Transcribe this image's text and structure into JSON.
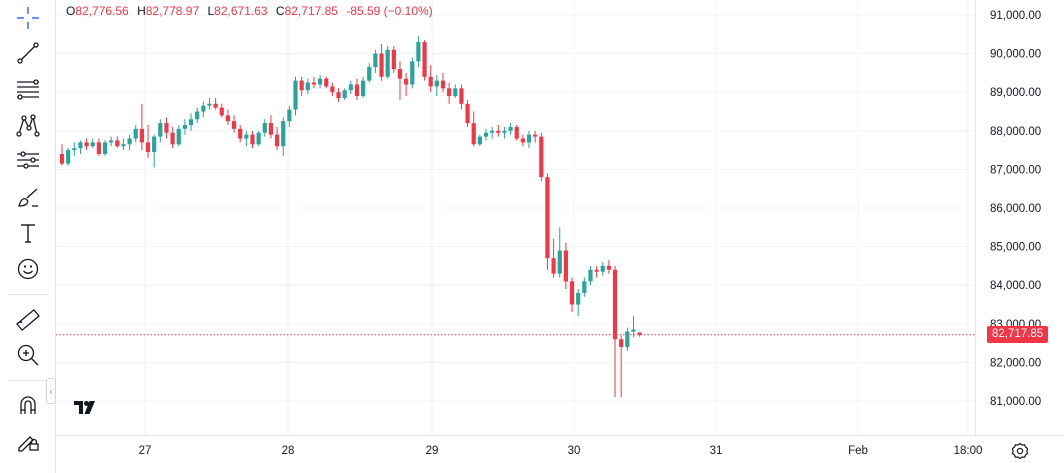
{
  "ohlc": {
    "open_key": "O",
    "open": "82,776.56",
    "high_key": "H",
    "high": "82,778.97",
    "low_key": "L",
    "low": "82,671.63",
    "close_key": "C",
    "close": "82,717.85",
    "change": "-85.59 (−0.10%)"
  },
  "current_price": "82,717.85",
  "colors": {
    "up": "#26a69a",
    "down": "#f23645",
    "grid": "#f0f3fa",
    "text": "#131722"
  },
  "toolbar": {
    "icons": [
      "crosshair-icon",
      "trend-line-icon",
      "fib-retracement-icon",
      "pattern-icon",
      "forecast-icon",
      "brush-icon",
      "text-icon",
      "emoji-icon",
      "ruler-icon",
      "zoom-in-icon",
      "magnet-icon",
      "lock-drawing-icon"
    ]
  },
  "chart_data": {
    "type": "candlestick",
    "y_axis_labels": [
      "91,000.00",
      "90,000.00",
      "89,000.00",
      "88,000.00",
      "87,000.00",
      "86,000.00",
      "85,000.00",
      "84,000.00",
      "83,000.00",
      "82,000.00",
      "81,000.00"
    ],
    "x_axis_labels": [
      "27",
      "28",
      "29",
      "30",
      "31",
      "Feb",
      "18:00"
    ],
    "ylim": [
      80500,
      91300
    ],
    "grid": true,
    "last_price": 82717.85,
    "candles": [
      [
        87400,
        87650,
        87100,
        87150
      ],
      [
        87150,
        87550,
        87100,
        87500
      ],
      [
        87500,
        87700,
        87350,
        87550
      ],
      [
        87550,
        87750,
        87400,
        87700
      ],
      [
        87700,
        87800,
        87500,
        87600
      ],
      [
        87600,
        87800,
        87550,
        87700
      ],
      [
        87700,
        87800,
        87350,
        87400
      ],
      [
        87400,
        87750,
        87350,
        87700
      ],
      [
        87700,
        87850,
        87600,
        87750
      ],
      [
        87750,
        87850,
        87550,
        87600
      ],
      [
        87600,
        87800,
        87500,
        87650
      ],
      [
        87650,
        87900,
        87500,
        87800
      ],
      [
        87800,
        88150,
        87700,
        88050
      ],
      [
        88050,
        88700,
        87500,
        87700
      ],
      [
        87700,
        88150,
        87300,
        87450
      ],
      [
        87450,
        87900,
        87050,
        87850
      ],
      [
        87850,
        88300,
        87700,
        88200
      ],
      [
        88200,
        88350,
        87800,
        87950
      ],
      [
        87950,
        88100,
        87550,
        87650
      ],
      [
        87650,
        88150,
        87600,
        88050
      ],
      [
        88050,
        88300,
        87900,
        88150
      ],
      [
        88150,
        88450,
        88000,
        88300
      ],
      [
        88300,
        88600,
        88200,
        88500
      ],
      [
        88500,
        88750,
        88350,
        88650
      ],
      [
        88650,
        88850,
        88550,
        88700
      ],
      [
        88700,
        88850,
        88550,
        88600
      ],
      [
        88600,
        88700,
        88350,
        88400
      ],
      [
        88400,
        88550,
        88150,
        88250
      ],
      [
        88250,
        88400,
        87950,
        88050
      ],
      [
        88050,
        88150,
        87700,
        87800
      ],
      [
        87800,
        88000,
        87600,
        87900
      ],
      [
        87900,
        88000,
        87550,
        87650
      ],
      [
        87650,
        88000,
        87600,
        87950
      ],
      [
        87950,
        88300,
        87850,
        88200
      ],
      [
        88200,
        88400,
        87800,
        87900
      ],
      [
        87900,
        88100,
        87500,
        87600
      ],
      [
        87600,
        88350,
        87350,
        88250
      ],
      [
        88250,
        88650,
        88100,
        88550
      ],
      [
        88550,
        89400,
        88400,
        89300
      ],
      [
        89300,
        89400,
        88900,
        89050
      ],
      [
        89050,
        89350,
        88950,
        89250
      ],
      [
        89250,
        89400,
        89100,
        89200
      ],
      [
        89200,
        89450,
        89100,
        89350
      ],
      [
        89350,
        89400,
        89100,
        89150
      ],
      [
        89150,
        89250,
        88900,
        89000
      ],
      [
        89000,
        89100,
        88750,
        88850
      ],
      [
        88850,
        89100,
        88800,
        89050
      ],
      [
        89050,
        89300,
        88950,
        89200
      ],
      [
        89200,
        89350,
        88800,
        88900
      ],
      [
        88900,
        89400,
        88850,
        89300
      ],
      [
        89300,
        89750,
        89250,
        89650
      ],
      [
        89650,
        90100,
        89500,
        90000
      ],
      [
        90000,
        90250,
        89300,
        89400
      ],
      [
        89400,
        90200,
        89350,
        90100
      ],
      [
        90100,
        90200,
        89500,
        89600
      ],
      [
        89600,
        89800,
        88800,
        89350
      ],
      [
        89350,
        89500,
        88900,
        89200
      ],
      [
        89200,
        89900,
        89100,
        89800
      ],
      [
        89800,
        90450,
        89650,
        90300
      ],
      [
        90300,
        90350,
        89300,
        89400
      ],
      [
        89400,
        89700,
        89000,
        89150
      ],
      [
        89150,
        89450,
        88900,
        89300
      ],
      [
        89300,
        89500,
        89000,
        89100
      ],
      [
        89100,
        89250,
        88700,
        88900
      ],
      [
        88900,
        89200,
        88850,
        89100
      ],
      [
        89100,
        89200,
        88550,
        88700
      ],
      [
        88700,
        88800,
        88100,
        88200
      ],
      [
        88200,
        88500,
        87600,
        87650
      ],
      [
        87650,
        87900,
        87600,
        87850
      ],
      [
        87850,
        88050,
        87750,
        87950
      ],
      [
        87950,
        88100,
        87800,
        88000
      ],
      [
        88000,
        88150,
        87850,
        87950
      ],
      [
        87950,
        88100,
        87800,
        88000
      ],
      [
        88000,
        88200,
        87900,
        88100
      ],
      [
        88100,
        88150,
        87750,
        87800
      ],
      [
        87800,
        87900,
        87600,
        87700
      ],
      [
        87700,
        88000,
        87550,
        87900
      ],
      [
        87900,
        88000,
        87700,
        87850
      ],
      [
        87850,
        87950,
        86700,
        86800
      ],
      [
        86800,
        86900,
        84400,
        84700
      ],
      [
        84700,
        85200,
        84200,
        84300
      ],
      [
        84300,
        85500,
        84200,
        84900
      ],
      [
        84900,
        85100,
        83900,
        84100
      ],
      [
        84100,
        84200,
        83300,
        83500
      ],
      [
        83500,
        83900,
        83200,
        83800
      ],
      [
        83800,
        84200,
        83700,
        84100
      ],
      [
        84100,
        84500,
        84000,
        84400
      ],
      [
        84400,
        84500,
        84200,
        84350
      ],
      [
        84350,
        84600,
        84250,
        84500
      ],
      [
        84500,
        84650,
        84300,
        84400
      ],
      [
        84400,
        84500,
        81100,
        82600
      ],
      [
        82600,
        82700,
        81100,
        82400
      ],
      [
        82400,
        82900,
        82300,
        82800
      ],
      [
        82800,
        83200,
        82650,
        82850
      ],
      [
        82776.56,
        82778.97,
        82671.63,
        82717.85
      ]
    ]
  }
}
